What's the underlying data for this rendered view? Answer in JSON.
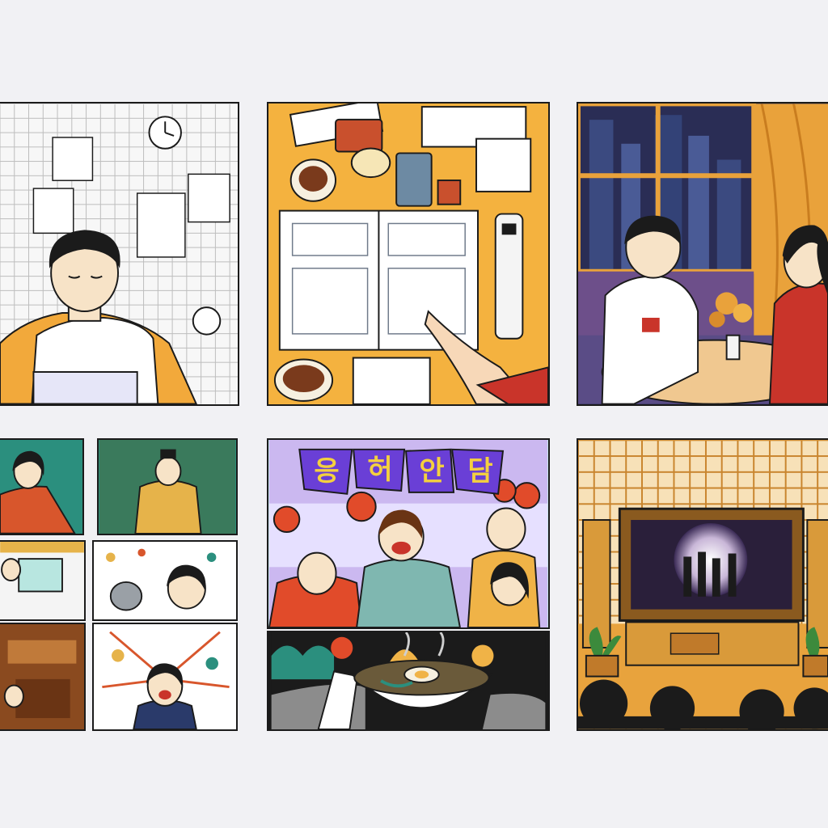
{
  "canvas": {
    "background": "#f1f1f4"
  },
  "panels": [
    {
      "id": "studying-at-laptop",
      "palette": [
        "#f6f6f6",
        "#f2a93b",
        "#1b1b1b"
      ]
    },
    {
      "id": "desk-with-notebook-and-remote",
      "palette": [
        "#f4b23f",
        "#ffffff",
        "#c9502d"
      ]
    },
    {
      "id": "couple-at-window-table",
      "palette": [
        "#2a2d55",
        "#e9a23b",
        "#c9342a"
      ]
    },
    {
      "id": "drama-montage-collage",
      "palette": [
        "#2b8f7e",
        "#d8562c",
        "#e6b34a"
      ]
    },
    {
      "id": "cheering-crowd-and-noodle-bowl",
      "palette": [
        "#7b5cff",
        "#c9e7f0",
        "#e14b2a"
      ]
    },
    {
      "id": "home-theater-screening",
      "palette": [
        "#e8a33d",
        "#2a1f3a",
        "#1b1b1b"
      ]
    }
  ],
  "banner": {
    "signs": [
      "응",
      "허",
      "안",
      "담"
    ]
  }
}
